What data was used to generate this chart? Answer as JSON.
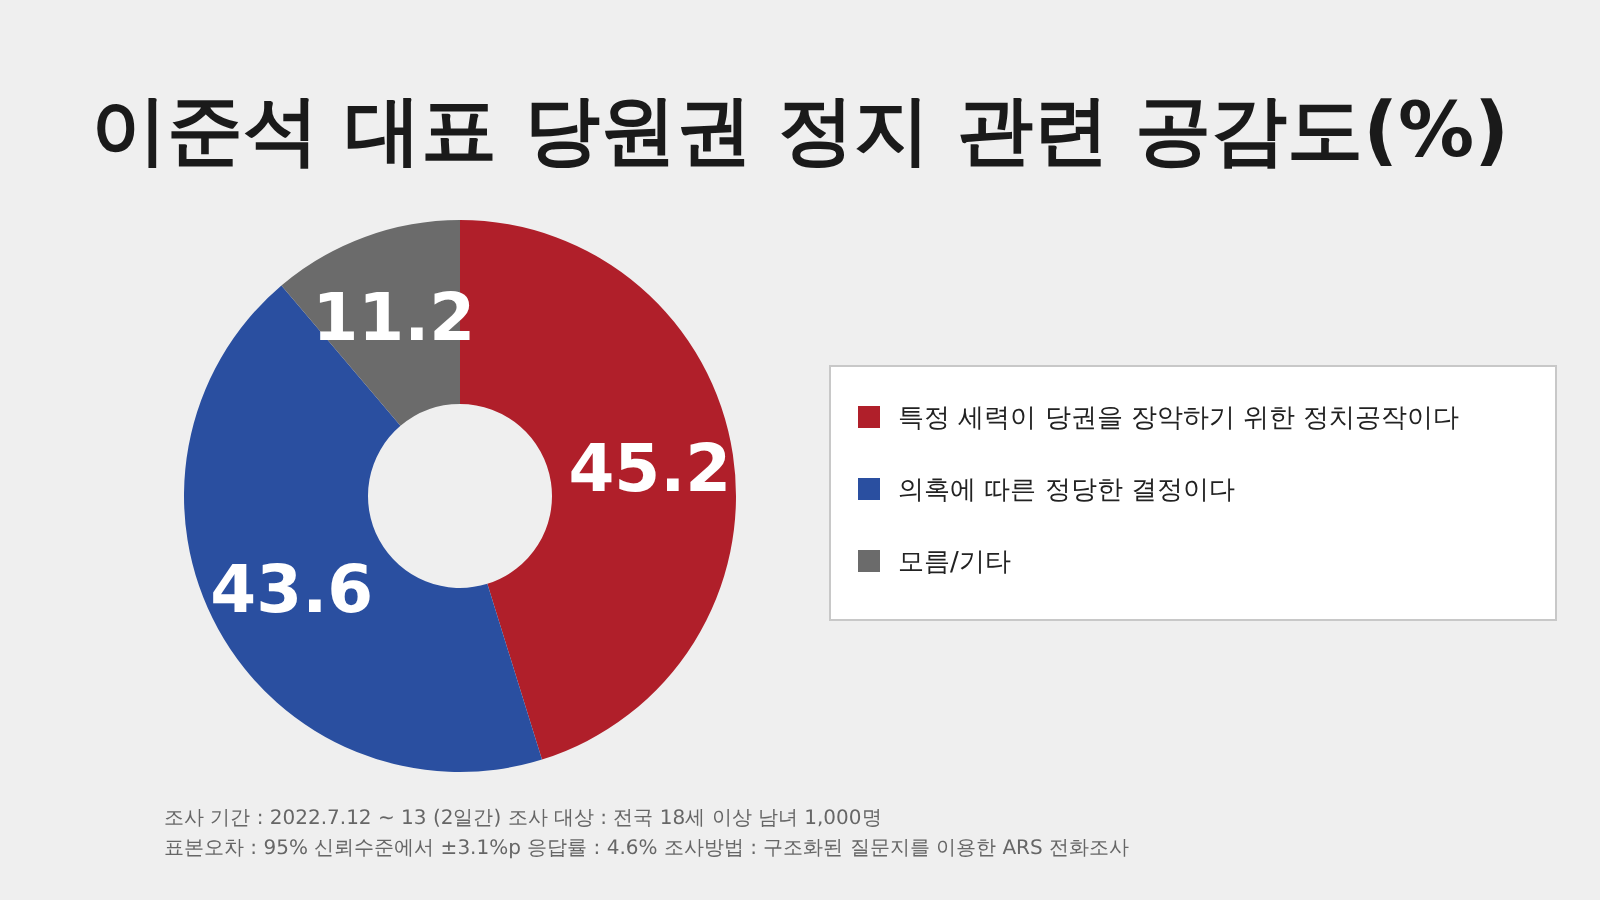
{
  "chart_data": {
    "type": "donut",
    "title": "이준석 대표 당원권 정지 관련 공감도(%)",
    "categories": [
      "특정 세력이 당권을 장악하기 위한 정치공작이다",
      "의혹에 따른 정당한 결정이다",
      "모름/기타"
    ],
    "values": [
      45.2,
      43.6,
      11.2
    ],
    "colors": [
      "#b01f2a",
      "#2a4fa0",
      "#6b6b6b"
    ],
    "data_labels": true,
    "legend": "right",
    "annotations": [
      "조사 기간 : 2022.7.12 ~ 13 (2일간)   조사 대상 : 전국 18세 이상 남녀 1,000명",
      "표본오차 : 95% 신뢰수준에서 ±3.1%p   응답률 : 4.6%   조사방법 : 구조화된 질문지를 이용한 ARS 전화조사"
    ]
  }
}
